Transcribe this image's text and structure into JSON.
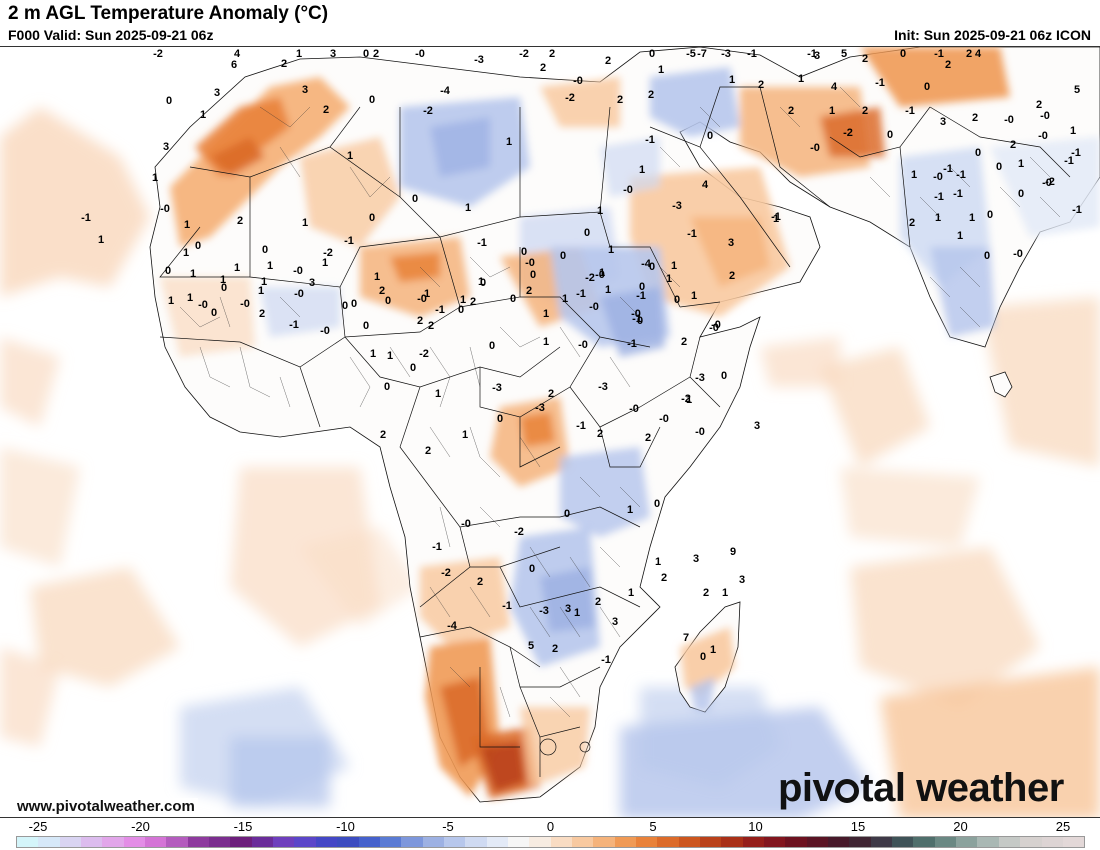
{
  "header": {
    "title": "2 m AGL Temperature Anomaly (°C)",
    "valid": "F000 Valid: Sun 2025-09-21 06z",
    "init": "Init: Sun 2025-09-21 06z ICON"
  },
  "footer": {
    "url": "www.pivotalweather.com",
    "brand_left": "piv",
    "brand_right": "tal weather"
  },
  "legend": {
    "ticks": [
      "-25",
      "-20",
      "-15",
      "-10",
      "-5",
      "0",
      "5",
      "10",
      "15",
      "20",
      "25"
    ],
    "colors": [
      "#d4f5fa",
      "#d6e8f8",
      "#d9d4f2",
      "#dcbcee",
      "#e2a6ea",
      "#e38de6",
      "#d474d6",
      "#b45cbe",
      "#8e3a9e",
      "#7b2e8f",
      "#6d1f7c",
      "#6a2c9a",
      "#6e3fbd",
      "#5b46c9",
      "#4447c6",
      "#3c4cc0",
      "#4561cc",
      "#5a7bd4",
      "#7d97dc",
      "#9db1e3",
      "#b7c7ec",
      "#cfdaf2",
      "#e3eaf7",
      "#f6f6f6",
      "#f7ece2",
      "#f9dcc3",
      "#f8c9a0",
      "#f5b37b",
      "#f09a55",
      "#e9823a",
      "#dc6b2a",
      "#cc561f",
      "#b9411a",
      "#a93018",
      "#951f1b",
      "#82161f",
      "#6d1220",
      "#5a1424",
      "#47192a",
      "#3f2533",
      "#3e3947",
      "#3f5358",
      "#4f6f6c",
      "#6a8883",
      "#8ba29d",
      "#a9b8b4",
      "#c5c9c6",
      "#d6d1cf",
      "#ddd4d4",
      "#e3d8d8"
    ]
  },
  "map": {
    "values": [
      "1",
      "3",
      "2",
      "0",
      "-2",
      "2",
      "-7",
      "-1",
      "0",
      "-1",
      "4",
      "6",
      "2",
      "-3",
      "-0",
      "-5",
      "-3",
      "5",
      "3",
      "2",
      "0",
      "-1",
      "2",
      "4",
      "2",
      "-2",
      "3",
      "3",
      "2",
      "1",
      "1",
      "2",
      "1",
      "4",
      "-1",
      "0",
      "5",
      "-4",
      "-0",
      "2",
      "-2",
      "2",
      "2",
      "0",
      "-2",
      "2",
      "1",
      "0",
      "2",
      "1",
      "2",
      "-1",
      "3",
      "-0",
      "-0",
      "2",
      "2",
      "-0",
      "2",
      "1",
      "0",
      "-1",
      "1",
      "1",
      "3",
      "1",
      "1",
      "4",
      "-0",
      "0",
      "1",
      "0",
      "1",
      "-1",
      "-2",
      "-1",
      "-1",
      "-0",
      "-2",
      "0",
      "-0",
      "0",
      "1",
      "1",
      "0",
      "2",
      "-0",
      "1",
      "0",
      "-1",
      "1",
      "-1",
      "-2",
      "-3",
      "-1",
      "-1",
      "0",
      "1",
      "2",
      "-1",
      "1",
      "-4",
      "3",
      "1",
      "-1",
      "-1",
      "0",
      "1",
      "0",
      "1",
      "-0",
      "-0",
      "-1",
      "1",
      "0",
      "-1",
      "0",
      "0",
      "1",
      "0",
      "0",
      "1",
      "2",
      "1",
      "-0",
      "-1",
      "1",
      "0",
      "0",
      "1",
      "1",
      "0",
      "1",
      "1",
      "0",
      "1",
      "1",
      "1",
      "1",
      "3",
      "1",
      "0",
      "2",
      "-0",
      "1",
      "0",
      "1",
      "-1",
      "-0",
      "0",
      "-0",
      "2",
      "0",
      "1",
      "-2",
      "-0",
      "1",
      "0",
      "2",
      "0",
      "0",
      "-0",
      "-0",
      "1",
      "0",
      "1",
      "1",
      "-0",
      "0",
      "-0",
      "2",
      "-1",
      "-0",
      "0",
      "1",
      "-2",
      "0",
      "1",
      "-0",
      "-1",
      "-1",
      "-0",
      "1",
      "2",
      "2",
      "-1",
      "2",
      "0",
      "1",
      "0",
      "1",
      "-3",
      "2",
      "-3",
      "-0",
      "-0",
      "-2",
      "-0",
      "0",
      "3",
      "-0",
      "-3",
      "1",
      "2",
      "2",
      "-1",
      "-3",
      "0",
      "1",
      "2",
      "2",
      "-0",
      "-1",
      "-2",
      "0",
      "1",
      "0",
      "2",
      "1",
      "2",
      "3",
      "0",
      "2",
      "-2",
      "-4",
      "-1",
      "-3",
      "1",
      "3",
      "5",
      "2",
      "-1",
      "1",
      "3",
      "9",
      "3",
      "2",
      "1",
      "7",
      "1",
      "0"
    ]
  }
}
